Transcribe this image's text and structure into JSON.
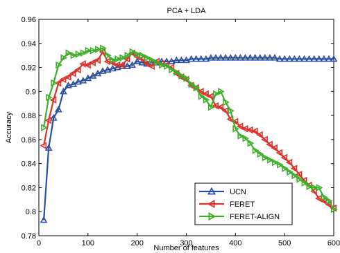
{
  "chart_data": {
    "type": "line",
    "title": "PCA + LDA",
    "xlabel": "Number of features",
    "ylabel": "Accuracy",
    "xlim": [
      0,
      600
    ],
    "ylim": [
      0.78,
      0.96
    ],
    "x_ticks": [
      0,
      100,
      200,
      300,
      400,
      500,
      600
    ],
    "y_ticks": [
      0.78,
      0.8,
      0.82,
      0.84,
      0.86,
      0.88,
      0.9,
      0.92,
      0.94,
      0.96
    ],
    "y_tick_labels": [
      "0.78",
      "0.8",
      "0.82",
      "0.84",
      "0.86",
      "0.88",
      "0.9",
      "0.92",
      "0.94",
      "0.96"
    ],
    "grid": false,
    "legend_position": "bottom-right",
    "x": [
      10,
      20,
      30,
      40,
      50,
      60,
      70,
      80,
      90,
      100,
      110,
      120,
      130,
      140,
      150,
      160,
      170,
      180,
      190,
      200,
      210,
      220,
      230,
      240,
      250,
      260,
      270,
      280,
      290,
      300,
      310,
      320,
      330,
      340,
      350,
      360,
      370,
      380,
      390,
      400,
      410,
      420,
      430,
      440,
      450,
      460,
      470,
      480,
      490,
      500,
      510,
      520,
      530,
      540,
      550,
      560,
      570,
      580,
      590,
      600
    ],
    "series": [
      {
        "name": "UCN",
        "color": "#2b4fa0",
        "marker": "triangle-up",
        "values": [
          0.793,
          0.853,
          0.878,
          0.885,
          0.9,
          0.905,
          0.906,
          0.908,
          0.909,
          0.911,
          0.913,
          0.915,
          0.917,
          0.918,
          0.919,
          0.92,
          0.921,
          0.921,
          0.922,
          0.925,
          0.924,
          0.923,
          0.924,
          0.924,
          0.925,
          0.925,
          0.925,
          0.926,
          0.926,
          0.926,
          0.927,
          0.927,
          0.927,
          0.927,
          0.928,
          0.928,
          0.928,
          0.928,
          0.928,
          0.928,
          0.928,
          0.928,
          0.928,
          0.928,
          0.928,
          0.928,
          0.928,
          0.928,
          0.927,
          0.927,
          0.927,
          0.927,
          0.927,
          0.927,
          0.927,
          0.927,
          0.927,
          0.927,
          0.927,
          0.927
        ]
      },
      {
        "name": "FERET",
        "color": "#e0302a",
        "marker": "triangle-left",
        "values": [
          0.855,
          0.876,
          0.893,
          0.907,
          0.91,
          0.912,
          0.915,
          0.918,
          0.923,
          0.922,
          0.924,
          0.926,
          0.933,
          0.925,
          0.924,
          0.922,
          0.922,
          0.927,
          0.932,
          0.929,
          0.927,
          0.923,
          0.921,
          0.925,
          0.923,
          0.922,
          0.92,
          0.915,
          0.912,
          0.91,
          0.905,
          0.903,
          0.9,
          0.898,
          0.896,
          0.888,
          0.887,
          0.884,
          0.877,
          0.875,
          0.871,
          0.869,
          0.868,
          0.867,
          0.864,
          0.86,
          0.856,
          0.853,
          0.849,
          0.845,
          0.841,
          0.836,
          0.831,
          0.826,
          0.822,
          0.817,
          0.811,
          0.809,
          0.806,
          0.803
        ]
      },
      {
        "name": "FERET-ALIGN",
        "color": "#3fae2a",
        "marker": "triangle-right",
        "values": [
          0.87,
          0.895,
          0.907,
          0.922,
          0.928,
          0.932,
          0.93,
          0.931,
          0.932,
          0.934,
          0.934,
          0.935,
          0.936,
          0.93,
          0.926,
          0.927,
          0.928,
          0.93,
          0.933,
          0.931,
          0.93,
          0.928,
          0.926,
          0.924,
          0.922,
          0.921,
          0.918,
          0.916,
          0.913,
          0.911,
          0.906,
          0.903,
          0.896,
          0.893,
          0.887,
          0.898,
          0.9,
          0.891,
          0.884,
          0.869,
          0.863,
          0.861,
          0.857,
          0.851,
          0.848,
          0.845,
          0.843,
          0.841,
          0.839,
          0.836,
          0.833,
          0.83,
          0.827,
          0.824,
          0.821,
          0.82,
          0.82,
          0.812,
          0.809,
          0.802
        ]
      }
    ]
  }
}
